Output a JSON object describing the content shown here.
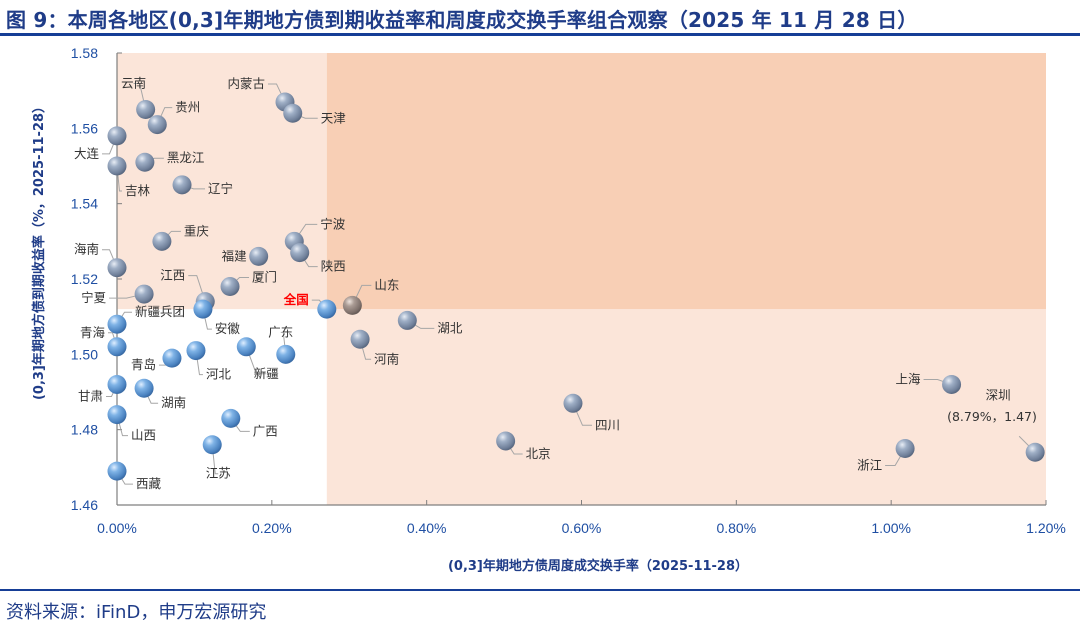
{
  "title": "图 9：本周各地区(0,3]年期地方债到期收益率和周度成交换手率组合观察（2025 年 11 月 28 日）",
  "source": "资料来源：iFinD，申万宏源研究",
  "colors": {
    "title": "#1f3c88",
    "rule": "#163e96",
    "tick": "#1f4fa3",
    "quadrant_light": "#fbe5d9",
    "quadrant_dark": "#f8cfb5",
    "ball_blue": "#5b9bd5",
    "ball_grey": "#8e9bb0",
    "national_label": "#ff0000"
  },
  "annotation": "(8.79%，1.47)",
  "chart_data": {
    "type": "scatter",
    "title": "本周各地区(0,3]年期地方债到期收益率和周度成交换手率组合观察（2025 年 11 月 28 日）",
    "xlabel": "(0,3]年期地方债周度成交换手率（2025-11-28）",
    "ylabel": "(0,3]年期地方债到期收益率（%，2025-11-28）",
    "xlim": [
      0.0,
      1.2
    ],
    "ylim": [
      1.46,
      1.58
    ],
    "x_unit": "%",
    "x_ticks": [
      "0.00%",
      "0.20%",
      "0.40%",
      "0.60%",
      "0.80%",
      "1.00%",
      "1.20%"
    ],
    "y_ticks": [
      "1.46",
      "1.48",
      "1.50",
      "1.52",
      "1.54",
      "1.56",
      "1.58"
    ],
    "grid": false,
    "reference_point": {
      "name": "全国",
      "x": 0.271,
      "y": 1.512
    },
    "quadrants": "Shaded by national reference: x > national (right) and y > national (top) shaded light peach; top-right darker peach; bottom-left white",
    "annotations": [
      {
        "name": "深圳",
        "text": "(8.79%，1.47)",
        "note": "actual x value 8.79% exceeds axis; plotted at right edge"
      }
    ],
    "points": [
      {
        "name": "云南",
        "x": 0.037,
        "y": 1.565
      },
      {
        "name": "贵州",
        "x": 0.052,
        "y": 1.561
      },
      {
        "name": "内蒙古",
        "x": 0.217,
        "y": 1.567
      },
      {
        "name": "天津",
        "x": 0.227,
        "y": 1.564
      },
      {
        "name": "大连",
        "x": 0.0,
        "y": 1.558
      },
      {
        "name": "吉林",
        "x": 0.0,
        "y": 1.55
      },
      {
        "name": "黑龙江",
        "x": 0.036,
        "y": 1.551
      },
      {
        "name": "辽宁",
        "x": 0.084,
        "y": 1.545
      },
      {
        "name": "重庆",
        "x": 0.058,
        "y": 1.53
      },
      {
        "name": "福建",
        "x": 0.183,
        "y": 1.526
      },
      {
        "name": "宁波",
        "x": 0.229,
        "y": 1.53
      },
      {
        "name": "陕西",
        "x": 0.236,
        "y": 1.527
      },
      {
        "name": "海南",
        "x": 0.0,
        "y": 1.523
      },
      {
        "name": "厦门",
        "x": 0.146,
        "y": 1.518
      },
      {
        "name": "宁夏",
        "x": 0.035,
        "y": 1.516
      },
      {
        "name": "江西",
        "x": 0.114,
        "y": 1.514
      },
      {
        "name": "安徽",
        "x": 0.111,
        "y": 1.512
      },
      {
        "name": "全国",
        "x": 0.271,
        "y": 1.512
      },
      {
        "name": "山东",
        "x": 0.304,
        "y": 1.513
      },
      {
        "name": "湖北",
        "x": 0.375,
        "y": 1.509
      },
      {
        "name": "新疆兵团",
        "x": 0.0,
        "y": 1.508
      },
      {
        "name": "河南",
        "x": 0.314,
        "y": 1.504
      },
      {
        "name": "青海",
        "x": 0.0,
        "y": 1.502
      },
      {
        "name": "广东",
        "x": 0.218,
        "y": 1.5
      },
      {
        "name": "新疆",
        "x": 0.167,
        "y": 1.502
      },
      {
        "name": "河北",
        "x": 0.102,
        "y": 1.501
      },
      {
        "name": "青岛",
        "x": 0.071,
        "y": 1.499
      },
      {
        "name": "甘肃",
        "x": 0.0,
        "y": 1.492
      },
      {
        "name": "湖南",
        "x": 0.035,
        "y": 1.491
      },
      {
        "name": "上海",
        "x": 1.078,
        "y": 1.492
      },
      {
        "name": "四川",
        "x": 0.589,
        "y": 1.487
      },
      {
        "name": "山西",
        "x": 0.0,
        "y": 1.484
      },
      {
        "name": "广西",
        "x": 0.147,
        "y": 1.483
      },
      {
        "name": "北京",
        "x": 0.502,
        "y": 1.477
      },
      {
        "name": "江苏",
        "x": 0.123,
        "y": 1.476
      },
      {
        "name": "浙江",
        "x": 1.018,
        "y": 1.475
      },
      {
        "name": "深圳",
        "x": 8.79,
        "y": 1.47,
        "plotted_x": 1.186,
        "plotted_y": 1.474
      },
      {
        "name": "西藏",
        "x": 0.0,
        "y": 1.469
      }
    ]
  }
}
